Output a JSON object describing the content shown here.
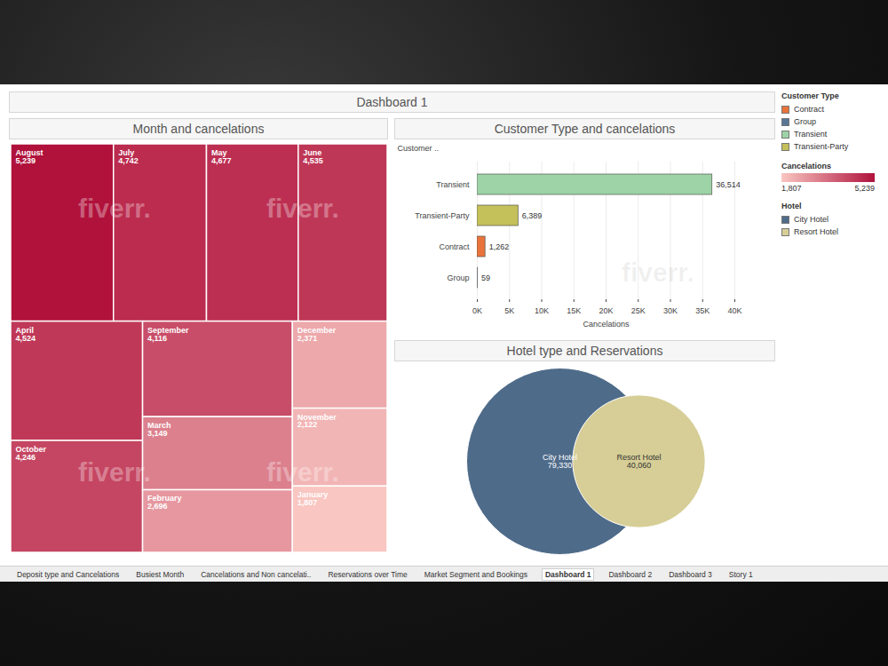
{
  "dashboard": {
    "title": "Dashboard 1",
    "watermark": "fiverr.",
    "tabs": [
      "Deposit type and Cancelations",
      "Busiest Month",
      "Cancelations and Non cancelati..",
      "Reservations over Time",
      "Market Segment and Bookings",
      "Dashboard 1",
      "Dashboard 2",
      "Dashboard 3",
      "Story 1"
    ]
  },
  "chart_data": [
    {
      "type": "treemap",
      "title": "Month and cancelations",
      "categories": [
        "August",
        "July",
        "May",
        "June",
        "April",
        "October",
        "September",
        "March",
        "February",
        "December",
        "November",
        "January"
      ],
      "values": [
        5239,
        4742,
        4677,
        4535,
        4524,
        4246,
        4116,
        3149,
        2696,
        2371,
        2122,
        1807
      ],
      "value_labels": [
        "5,239",
        "4,742",
        "4,677",
        "4,535",
        "4,524",
        "4,246",
        "4,116",
        "3,149",
        "2,696",
        "2,371",
        "2,122",
        "1,807"
      ],
      "data_labels": true,
      "color_scale": {
        "title": "Cancelations",
        "range": [
          1807,
          5239
        ],
        "colors": [
          "#f9c6c1",
          "#b0123c"
        ],
        "ticks": [
          {
            "value": 1807,
            "label": "1,807"
          },
          {
            "value": 5239,
            "label": "5,239"
          }
        ]
      },
      "legend": "right"
    },
    {
      "type": "bar",
      "orientation": "horizontal",
      "title": "Customer Type and cancelations",
      "categories": [
        "Transient",
        "Transient-Party",
        "Contract",
        "Group"
      ],
      "values": [
        36514,
        6389,
        1262,
        59
      ],
      "value_labels": [
        "36,514",
        "6,389",
        "1,262",
        "59"
      ],
      "colors": [
        "#9dd3a6",
        "#c4c05a",
        "#e8743b",
        "#5a7796"
      ],
      "data_labels": true,
      "grid": true,
      "xlabel": "Cancelations",
      "ylabel": "Customer ..",
      "xlim": [
        0,
        40000
      ],
      "xticks": [
        {
          "value": 0,
          "label": "0K"
        },
        {
          "value": 5000,
          "label": "5K"
        },
        {
          "value": 10000,
          "label": "10K"
        },
        {
          "value": 15000,
          "label": "15K"
        },
        {
          "value": 20000,
          "label": "20K"
        },
        {
          "value": 25000,
          "label": "25K"
        },
        {
          "value": 30000,
          "label": "30K"
        },
        {
          "value": 35000,
          "label": "35K"
        },
        {
          "value": 40000,
          "label": "40K"
        }
      ],
      "legend_title": "Customer Type",
      "legend": "right"
    },
    {
      "type": "bubble",
      "title": "Hotel type and Reservations",
      "categories": [
        "City Hotel",
        "Resort Hotel"
      ],
      "values": [
        79330,
        40060
      ],
      "value_labels": [
        "79,330",
        "40,060"
      ],
      "colors": [
        "#4f6b8a",
        "#d6ce96"
      ],
      "data_labels": true,
      "legend_title": "Hotel",
      "legend": "right"
    }
  ]
}
